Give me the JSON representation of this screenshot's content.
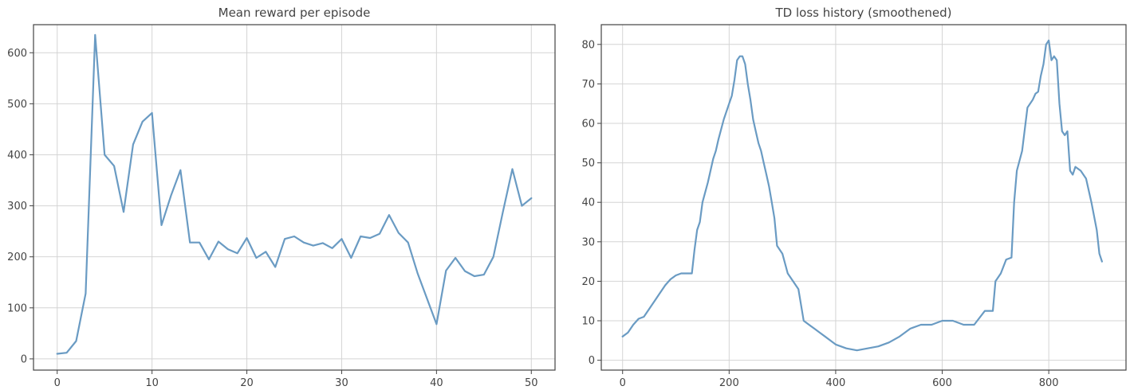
{
  "colors": {
    "series": "#6a9bc3",
    "frame": "#444444",
    "grid": "#d4d4d4"
  },
  "chart_data": [
    {
      "type": "line",
      "title": "Mean reward per episode",
      "xlabel": "",
      "ylabel": "",
      "xlim": [
        -2.5,
        52.5
      ],
      "ylim": [
        -22,
        655
      ],
      "xticks": [
        0,
        10,
        20,
        30,
        40,
        50
      ],
      "yticks": [
        0,
        100,
        200,
        300,
        400,
        500,
        600
      ],
      "grid": true,
      "series": [
        {
          "x": [
            0,
            1,
            2,
            3,
            4,
            5,
            6,
            7,
            8,
            9,
            10,
            11,
            12,
            13,
            14,
            15,
            16,
            17,
            18,
            19,
            20,
            21,
            22,
            23,
            24,
            25,
            26,
            27,
            28,
            29,
            30,
            31,
            32,
            33,
            34,
            35,
            36,
            37,
            38,
            39,
            40,
            41,
            42,
            43,
            44,
            45,
            46,
            47,
            48,
            49,
            50
          ],
          "values": [
            10,
            12,
            35,
            128,
            635,
            400,
            378,
            288,
            420,
            465,
            482,
            262,
            320,
            370,
            228,
            228,
            195,
            230,
            215,
            207,
            237,
            198,
            210,
            180,
            235,
            240,
            228,
            222,
            227,
            217,
            235,
            198,
            240,
            237,
            245,
            282,
            247,
            228,
            168,
            118,
            68,
            173,
            198,
            172,
            162,
            165,
            200,
            288,
            372,
            300,
            315
          ]
        }
      ]
    },
    {
      "type": "line",
      "title": "TD loss history (smoothened)",
      "xlabel": "",
      "ylabel": "",
      "xlim": [
        -40,
        945
      ],
      "ylim": [
        -2.5,
        85
      ],
      "xticks": [
        0,
        200,
        400,
        600,
        800
      ],
      "yticks": [
        0,
        10,
        20,
        30,
        40,
        50,
        60,
        70,
        80
      ],
      "grid": true,
      "series": [
        {
          "x": [
            0,
            10,
            20,
            30,
            40,
            50,
            60,
            70,
            80,
            90,
            100,
            110,
            120,
            130,
            135,
            140,
            145,
            150,
            160,
            170,
            175,
            180,
            190,
            200,
            205,
            210,
            215,
            220,
            225,
            230,
            235,
            240,
            245,
            250,
            255,
            260,
            265,
            270,
            275,
            280,
            285,
            290,
            300,
            310,
            320,
            330,
            340,
            350,
            360,
            370,
            380,
            390,
            400,
            420,
            440,
            460,
            480,
            500,
            520,
            540,
            560,
            580,
            600,
            620,
            640,
            660,
            680,
            690,
            695,
            700,
            705,
            710,
            720,
            730,
            735,
            740,
            750,
            760,
            770,
            775,
            780,
            785,
            790,
            795,
            800,
            805,
            810,
            815,
            820,
            825,
            830,
            835,
            840,
            845,
            850,
            860,
            870,
            880,
            890,
            895,
            900
          ],
          "values": [
            6,
            7,
            9,
            10.5,
            11,
            13,
            15,
            17,
            19,
            20.5,
            21.5,
            22,
            22,
            22,
            28,
            33,
            35,
            40,
            45,
            51,
            53,
            56,
            61,
            65,
            67,
            71,
            76,
            77,
            77,
            75,
            70,
            66,
            61,
            58,
            55,
            53,
            50,
            47,
            44,
            40,
            36,
            29,
            27,
            22,
            20,
            18,
            10,
            9,
            8,
            7,
            6,
            5,
            4,
            3,
            2.5,
            3,
            3.5,
            4.5,
            6,
            8,
            9,
            9,
            10,
            10,
            9,
            9,
            12.5,
            12.5,
            12.5,
            20,
            21,
            22,
            25.5,
            26,
            40,
            48,
            53,
            64,
            66,
            67.5,
            68,
            72,
            75,
            80,
            81,
            76,
            77,
            76,
            65,
            58,
            57,
            58,
            48,
            47,
            49,
            48,
            46,
            40,
            33,
            27,
            25
          ]
        }
      ]
    }
  ]
}
